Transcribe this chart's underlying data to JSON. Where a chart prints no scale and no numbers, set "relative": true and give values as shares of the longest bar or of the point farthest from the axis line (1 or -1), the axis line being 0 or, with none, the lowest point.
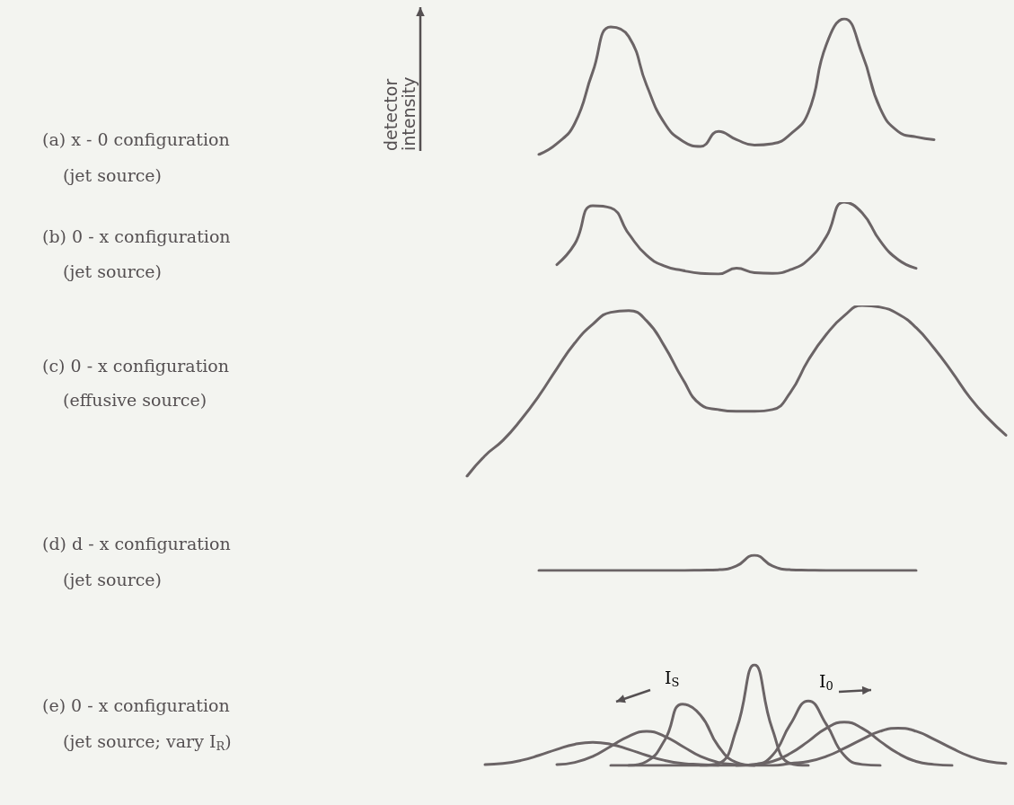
{
  "chart_data": [
    {
      "type": "line",
      "title": "(a) x - 0 configuration",
      "subtitle": "(jet source)",
      "ylabel": "detector intensity",
      "relative": true,
      "categories": [
        null,
        null,
        null,
        null,
        null,
        null,
        null,
        null,
        null,
        null,
        null,
        null,
        null,
        null,
        null,
        null,
        null,
        null,
        null,
        null,
        null,
        null,
        null,
        null,
        null,
        null,
        null,
        null,
        null,
        null,
        null,
        null,
        null,
        null,
        null,
        null,
        null,
        null,
        null,
        null,
        null,
        null,
        null,
        null,
        null,
        null,
        null,
        null,
        null,
        null,
        null,
        null,
        null,
        null,
        null
      ],
      "series": [
        {
          "color": "#6b6466",
          "values": [
            null,
            null,
            null,
            null,
            null,
            null,
            null,
            null,
            null,
            null,
            null,
            null,
            null,
            null,
            null,
            null,
            null,
            null,
            null,
            null,
            null,
            null,
            null,
            null,
            null,
            null,
            null,
            null,
            0,
            0.08,
            0.23,
            0.61,
            0.94,
            0.87,
            0.51,
            0.23,
            0.1,
            0.06,
            0.17,
            0.11,
            0.07,
            0.08,
            0.15,
            0.31,
            0.81,
            1,
            0.74,
            0.34,
            0.17,
            0.13,
            0.11,
            null,
            null,
            null,
            null
          ]
        }
      ]
    },
    {
      "type": "line",
      "title": "(b) 0 - x configuration",
      "subtitle": "(jet source)",
      "relative": true,
      "categories": [
        null,
        null,
        null,
        null,
        null,
        null,
        null,
        null,
        null,
        null,
        null,
        null,
        null,
        null,
        null,
        null,
        null,
        null,
        null,
        null,
        null,
        null,
        null,
        null,
        null,
        null,
        null,
        null,
        null,
        null,
        null,
        null,
        null,
        null,
        null,
        null,
        null,
        null,
        null,
        null,
        null,
        null,
        null,
        null,
        null,
        null,
        null,
        null,
        null,
        null,
        null,
        null,
        null,
        null,
        null
      ],
      "series": [
        {
          "color": "#6b6466",
          "values": [
            null,
            null,
            null,
            null,
            null,
            null,
            null,
            null,
            null,
            null,
            null,
            null,
            null,
            null,
            null,
            null,
            null,
            null,
            null,
            null,
            null,
            null,
            null,
            null,
            null,
            null,
            null,
            null,
            null,
            0.13,
            0.42,
            0.95,
            0.92,
            0.56,
            0.26,
            0.11,
            0.05,
            0.01,
            0,
            0.08,
            0.02,
            0.01,
            0.06,
            0.2,
            0.52,
            1,
            0.85,
            0.46,
            0.2,
            0.08,
            null,
            null,
            null,
            null,
            null
          ]
        }
      ]
    },
    {
      "type": "line",
      "title": "(c) 0 - x configuration",
      "subtitle": "(effusive source)",
      "relative": true,
      "categories": [
        null,
        null,
        null,
        null,
        null,
        null,
        null,
        null,
        null,
        null,
        null,
        null,
        null,
        null,
        null,
        null,
        null,
        null,
        null,
        null,
        null,
        null,
        null,
        null,
        null,
        null,
        null,
        null,
        null,
        null,
        null,
        null,
        null,
        null,
        null,
        null,
        null,
        null,
        null,
        null,
        null,
        null,
        null,
        null,
        null,
        null,
        null,
        null,
        null,
        null,
        null,
        null,
        null,
        null,
        null
      ],
      "series": [
        {
          "color": "#6b6466",
          "values": [
            null,
            null,
            null,
            null,
            null,
            null,
            null,
            null,
            null,
            null,
            null,
            null,
            null,
            null,
            null,
            null,
            null,
            null,
            null,
            null,
            null,
            null,
            null,
            null,
            0,
            0.12,
            0.21,
            0.33,
            0.47,
            0.63,
            0.78,
            0.89,
            0.96,
            0.97,
            0.91,
            0.76,
            0.57,
            0.42,
            0.39,
            0.38,
            0.38,
            0.39,
            0.49,
            0.68,
            0.83,
            0.94,
            1,
            0.99,
            0.95,
            0.87,
            0.75,
            0.61,
            0.46,
            0.34,
            0.24
          ]
        }
      ]
    },
    {
      "type": "line",
      "title": "(d) d - x configuration",
      "subtitle": "(jet source)",
      "relative": true,
      "categories": [
        null,
        null,
        null,
        null,
        null,
        null,
        null,
        null,
        null,
        null,
        null,
        null,
        null,
        null,
        null,
        null,
        null,
        null,
        null,
        null,
        null,
        null,
        null,
        null,
        null,
        null,
        null,
        null,
        null,
        null,
        null,
        null,
        null,
        null,
        null,
        null,
        null,
        null,
        null,
        null,
        null,
        null,
        null,
        null,
        null,
        null,
        null,
        null,
        null,
        null,
        null,
        null,
        null,
        null,
        null
      ],
      "series": [
        {
          "color": "#6b6466",
          "values": [
            null,
            null,
            null,
            null,
            null,
            null,
            null,
            null,
            null,
            null,
            null,
            null,
            null,
            null,
            null,
            null,
            null,
            null,
            null,
            null,
            null,
            null,
            null,
            null,
            null,
            null,
            null,
            null,
            0,
            0,
            0,
            0,
            0,
            0,
            0,
            0,
            0,
            0.02,
            0.05,
            0.3,
            1,
            0.3,
            0.05,
            0.02,
            0,
            0,
            0,
            0,
            0,
            0,
            null,
            null,
            null,
            null,
            null
          ]
        }
      ]
    },
    {
      "type": "line",
      "title": "(e) 0 - x configuration",
      "subtitle": "(jet source; vary I$_{R}$)",
      "relative": true,
      "annotations": [
        "I$_{S}$",
        "I$_{0}$"
      ],
      "categories": [
        null,
        null,
        null,
        null,
        null,
        null,
        null,
        null,
        null,
        null,
        null,
        null,
        null,
        null,
        null,
        null,
        null,
        null,
        null,
        null,
        null,
        null,
        null,
        null,
        null,
        null,
        null,
        null,
        null,
        null,
        null,
        null,
        null,
        null,
        null,
        null,
        null,
        null,
        null,
        null,
        null,
        null,
        null,
        null,
        null,
        null,
        null,
        null,
        null,
        null,
        null,
        null,
        null,
        null,
        null
      ],
      "series": [
        {
          "color": "#6b6466",
          "values": [
            null,
            null,
            null,
            null,
            null,
            null,
            null,
            null,
            null,
            null,
            null,
            null,
            null,
            null,
            null,
            null,
            null,
            null,
            null,
            null,
            null,
            null,
            null,
            null,
            null,
            0.01,
            0.02,
            0.05,
            0.1,
            0.16,
            0.21,
            0.23,
            0.21,
            0.16,
            0.1,
            0.05,
            0.02,
            0.01,
            0,
            null,
            null,
            null,
            null,
            null,
            null,
            null,
            null,
            null,
            null,
            null,
            null,
            null,
            null,
            null,
            null
          ]
        },
        {
          "color": "#6b6466",
          "values": [
            null,
            null,
            null,
            null,
            null,
            null,
            null,
            null,
            null,
            null,
            null,
            null,
            null,
            null,
            null,
            null,
            null,
            null,
            null,
            null,
            null,
            null,
            null,
            null,
            null,
            null,
            null,
            null,
            null,
            0.01,
            0.03,
            0.09,
            0.19,
            0.29,
            0.34,
            0.29,
            0.19,
            0.09,
            0.03,
            0.01,
            0,
            null,
            null,
            null,
            null,
            null,
            null,
            null,
            null,
            null,
            null,
            null,
            null,
            null,
            null
          ]
        },
        {
          "color": "#6b6466",
          "values": [
            null,
            null,
            null,
            null,
            null,
            null,
            null,
            null,
            null,
            null,
            null,
            null,
            null,
            null,
            null,
            null,
            null,
            null,
            null,
            null,
            null,
            null,
            null,
            null,
            null,
            null,
            null,
            null,
            null,
            null,
            null,
            null,
            null,
            0,
            0.04,
            0.25,
            0.61,
            0.5,
            0.19,
            0.03,
            0,
            null,
            null,
            null,
            null,
            null,
            null,
            null,
            null,
            null,
            null,
            null,
            null,
            null,
            null
          ]
        },
        {
          "color": "#6b6466",
          "values": [
            null,
            null,
            null,
            null,
            null,
            null,
            null,
            null,
            null,
            null,
            null,
            null,
            null,
            null,
            null,
            null,
            null,
            null,
            null,
            null,
            null,
            null,
            null,
            null,
            null,
            null,
            null,
            null,
            null,
            null,
            null,
            null,
            null,
            null,
            null,
            null,
            null,
            0,
            0.02,
            0.36,
            1,
            0.36,
            0.02,
            0,
            null,
            null,
            null,
            null,
            null,
            null,
            null,
            null,
            null,
            null,
            null
          ]
        },
        {
          "color": "#6b6466",
          "values": [
            null,
            null,
            null,
            null,
            null,
            null,
            null,
            null,
            null,
            null,
            null,
            null,
            null,
            null,
            null,
            null,
            null,
            null,
            null,
            null,
            null,
            null,
            null,
            null,
            null,
            null,
            null,
            null,
            null,
            null,
            null,
            null,
            null,
            null,
            null,
            null,
            null,
            null,
            null,
            0,
            0.01,
            0.1,
            0.41,
            0.64,
            0.41,
            0.1,
            0.01,
            0,
            null,
            null,
            null,
            null,
            null,
            null,
            null
          ]
        },
        {
          "color": "#6b6466",
          "values": [
            null,
            null,
            null,
            null,
            null,
            null,
            null,
            null,
            null,
            null,
            null,
            null,
            null,
            null,
            null,
            null,
            null,
            null,
            null,
            null,
            null,
            null,
            null,
            null,
            null,
            null,
            null,
            null,
            null,
            null,
            null,
            null,
            null,
            null,
            null,
            null,
            null,
            null,
            null,
            0,
            0.01,
            0.04,
            0.12,
            0.24,
            0.37,
            0.43,
            0.37,
            0.24,
            0.12,
            0.04,
            0.01,
            0,
            null,
            null,
            null
          ]
        },
        {
          "color": "#6b6466",
          "values": [
            null,
            null,
            null,
            null,
            null,
            null,
            null,
            null,
            null,
            null,
            null,
            null,
            null,
            null,
            null,
            null,
            null,
            null,
            null,
            null,
            null,
            null,
            null,
            null,
            null,
            null,
            null,
            null,
            null,
            null,
            null,
            null,
            0,
            0,
            0,
            0,
            0,
            0,
            0,
            0,
            0,
            0,
            0.02,
            0.04,
            0.09,
            0.17,
            0.26,
            0.34,
            0.37,
            0.34,
            0.26,
            0.17,
            0.09,
            0.04,
            0.02
          ]
        }
      ]
    }
  ]
}
